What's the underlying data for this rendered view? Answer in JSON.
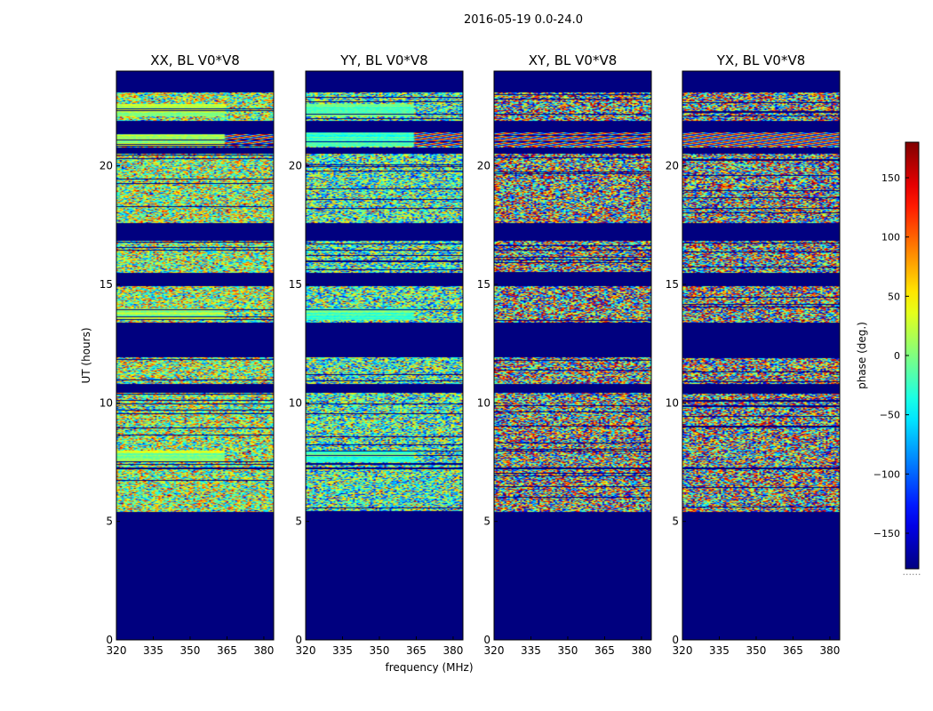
{
  "chart_data": {
    "type": "heatmap",
    "suptitle": "2016-05-19 0.0-24.0",
    "xlabel": "frequency (MHz)",
    "ylabel": "UT (hours)",
    "xlim": [
      320,
      384
    ],
    "ylim": [
      0,
      24
    ],
    "xticks": [
      320,
      335,
      350,
      365,
      380
    ],
    "yticks": [
      0,
      5,
      10,
      15,
      20
    ],
    "panels": [
      {
        "title": "XX, BL V0*V8",
        "pol": "XX"
      },
      {
        "title": "YY, BL V0*V8",
        "pol": "YY"
      },
      {
        "title": "XY, BL V0*V8",
        "pol": "XY"
      },
      {
        "title": "YX, BL V0*V8",
        "pol": "YX"
      }
    ],
    "colorbar": {
      "label": "phase (deg.)",
      "range": [
        -180,
        180
      ],
      "ticks": [
        150,
        100,
        50,
        0,
        -50,
        -100,
        -150
      ],
      "tick_labels": [
        "150",
        "100",
        "50",
        "0",
        "−50",
        "−100",
        "−150"
      ],
      "colormap": "jet",
      "footnote": "......"
    },
    "data_segments_hours": [
      [
        5.4,
        7.2
      ],
      [
        7.3,
        10.4
      ],
      [
        10.8,
        11.9
      ],
      [
        13.4,
        14.9
      ],
      [
        15.5,
        16.8
      ],
      [
        17.6,
        20.5
      ],
      [
        20.8,
        21.4
      ],
      [
        21.9,
        23.1
      ]
    ],
    "coherent_bands_hours": [
      [
        7.5,
        8.0
      ],
      [
        13.5,
        14.0
      ],
      [
        20.8,
        21.4
      ],
      [
        22.1,
        22.6
      ]
    ],
    "empty_value_color": "#00007f"
  }
}
